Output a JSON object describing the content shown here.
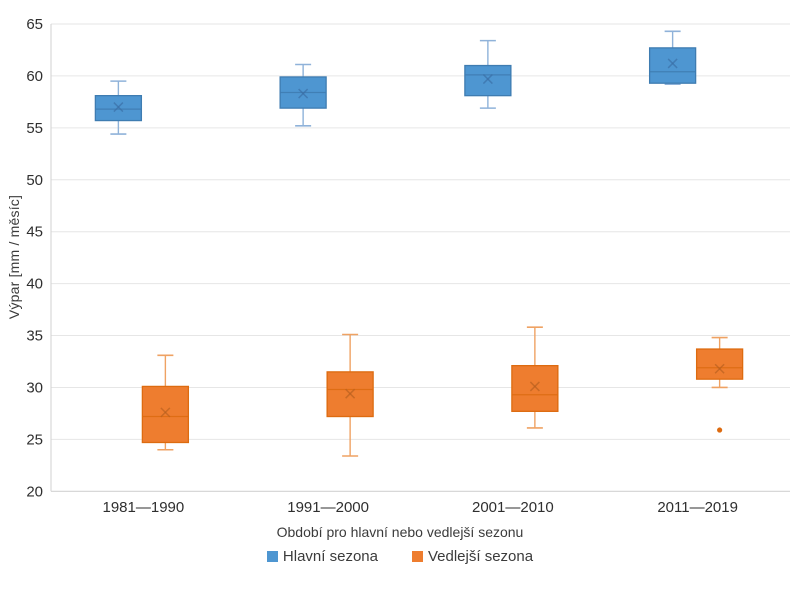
{
  "chart_data": {
    "type": "boxplot",
    "title": "",
    "xlabel": "Období pro hlavní nebo vedlejší sezonu",
    "ylabel": "Výpar [mm / měsíc]",
    "ylim": [
      20,
      65
    ],
    "ytick_step": 5,
    "yticks": [
      20,
      25,
      30,
      35,
      40,
      45,
      50,
      55,
      60,
      65
    ],
    "grid": true,
    "legend_position": "bottom",
    "categories": [
      "1981—1990",
      "1991—2000",
      "2001—2010",
      "2011—2019"
    ],
    "series": [
      {
        "name": "Hlavní sezona",
        "fill": "#4E96D1",
        "stroke": "#3E7CB1",
        "whisker_color": "#8FB2D9",
        "mean_color": "#3A6EA5",
        "boxes": [
          {
            "category": "1981—1990",
            "low": 54.4,
            "q1": 55.7,
            "median": 56.8,
            "q3": 58.1,
            "high": 59.5,
            "mean": 57.0,
            "outliers": []
          },
          {
            "category": "1991—2000",
            "low": 55.2,
            "q1": 56.9,
            "median": 58.4,
            "q3": 59.9,
            "high": 61.1,
            "mean": 58.3,
            "outliers": []
          },
          {
            "category": "2001—2010",
            "low": 56.9,
            "q1": 58.1,
            "median": 60.1,
            "q3": 61.0,
            "high": 63.4,
            "mean": 59.7,
            "outliers": []
          },
          {
            "category": "2011—2019",
            "low": 59.2,
            "q1": 59.3,
            "median": 60.4,
            "q3": 62.7,
            "high": 64.3,
            "mean": 61.2,
            "outliers": []
          }
        ]
      },
      {
        "name": "Vedlejší sezona",
        "fill": "#EE7D2F",
        "stroke": "#DD6B10",
        "whisker_color": "#EFA263",
        "mean_color": "#B65F1F",
        "boxes": [
          {
            "category": "1981—1990",
            "low": 24.0,
            "q1": 24.7,
            "median": 27.2,
            "q3": 30.1,
            "high": 33.1,
            "mean": 27.6,
            "outliers": []
          },
          {
            "category": "1991—2000",
            "low": 23.4,
            "q1": 27.2,
            "median": 29.8,
            "q3": 31.5,
            "high": 35.1,
            "mean": 29.4,
            "outliers": []
          },
          {
            "category": "2001—2010",
            "low": 26.1,
            "q1": 27.7,
            "median": 29.3,
            "q3": 32.1,
            "high": 35.8,
            "mean": 30.1,
            "outliers": []
          },
          {
            "category": "2011—2019",
            "low": 30.0,
            "q1": 30.8,
            "median": 31.9,
            "q3": 33.7,
            "high": 34.8,
            "mean": 31.8,
            "outliers": [
              25.9
            ]
          }
        ]
      }
    ],
    "colors": {
      "background": "#FFFFFF",
      "grid": "#E6E6E6",
      "axis": "#D2D2D2",
      "tick_text": "#2F2F2F",
      "label_text": "#3B3B3B"
    }
  }
}
